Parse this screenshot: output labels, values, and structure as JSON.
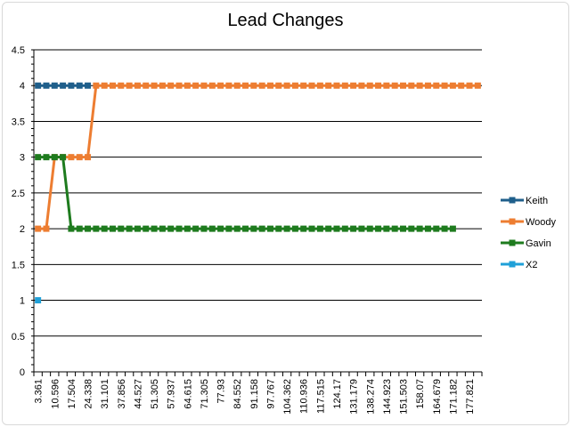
{
  "chart_data": {
    "type": "line",
    "title": "Lead Changes",
    "xlabel": "",
    "ylabel": "",
    "ylim": [
      0,
      4.5
    ],
    "y_ticks": [
      "0",
      "0.5",
      "1",
      "1.5",
      "2",
      "2.5",
      "3",
      "3.5",
      "4",
      "4.5"
    ],
    "x_tick_labels": [
      "3.361",
      "10.596",
      "17.504",
      "24.338",
      "31.101",
      "37.856",
      "44.527",
      "51.305",
      "57.937",
      "64.615",
      "71.305",
      "77.93",
      "84.552",
      "91.158",
      "97.767",
      "104.362",
      "110.936",
      "117.515",
      "124.17",
      "131.179",
      "138.274",
      "144.923",
      "151.503",
      "158.07",
      "164.679",
      "171.182",
      "177.821"
    ],
    "grid": "horizontal",
    "legend_position": "right",
    "series": [
      {
        "name": "Keith",
        "color": "#1f5f8b",
        "points": [
          [
            1,
            4
          ],
          [
            2,
            4
          ],
          [
            3,
            4
          ],
          [
            4,
            4
          ],
          [
            5,
            4
          ],
          [
            6,
            4
          ],
          [
            7,
            4
          ]
        ]
      },
      {
        "name": "Woody",
        "color": "#ed7d31",
        "points": [
          [
            1,
            2
          ],
          [
            2,
            2
          ],
          [
            3,
            3
          ],
          [
            4,
            3
          ],
          [
            5,
            3
          ],
          [
            6,
            3
          ],
          [
            7,
            3
          ],
          [
            8,
            4
          ],
          [
            9,
            4
          ],
          [
            10,
            4
          ],
          [
            11,
            4
          ],
          [
            12,
            4
          ],
          [
            13,
            4
          ],
          [
            14,
            4
          ],
          [
            15,
            4
          ],
          [
            16,
            4
          ],
          [
            17,
            4
          ],
          [
            18,
            4
          ],
          [
            19,
            4
          ],
          [
            20,
            4
          ],
          [
            21,
            4
          ],
          [
            22,
            4
          ],
          [
            23,
            4
          ],
          [
            24,
            4
          ],
          [
            25,
            4
          ],
          [
            26,
            4
          ],
          [
            27,
            4
          ],
          [
            28,
            4
          ],
          [
            29,
            4
          ],
          [
            30,
            4
          ],
          [
            31,
            4
          ],
          [
            32,
            4
          ],
          [
            33,
            4
          ],
          [
            34,
            4
          ],
          [
            35,
            4
          ],
          [
            36,
            4
          ],
          [
            37,
            4
          ],
          [
            38,
            4
          ],
          [
            39,
            4
          ],
          [
            40,
            4
          ],
          [
            41,
            4
          ],
          [
            42,
            4
          ],
          [
            43,
            4
          ],
          [
            44,
            4
          ],
          [
            45,
            4
          ],
          [
            46,
            4
          ],
          [
            47,
            4
          ],
          [
            48,
            4
          ],
          [
            49,
            4
          ],
          [
            50,
            4
          ],
          [
            51,
            4
          ],
          [
            52,
            4
          ],
          [
            53,
            4
          ],
          [
            54,
            4
          ]
        ]
      },
      {
        "name": "Gavin",
        "color": "#1e7b1e",
        "points": [
          [
            1,
            3
          ],
          [
            2,
            3
          ],
          [
            3,
            3
          ],
          [
            4,
            3
          ],
          [
            5,
            2
          ],
          [
            6,
            2
          ],
          [
            7,
            2
          ],
          [
            8,
            2
          ],
          [
            9,
            2
          ],
          [
            10,
            2
          ],
          [
            11,
            2
          ],
          [
            12,
            2
          ],
          [
            13,
            2
          ],
          [
            14,
            2
          ],
          [
            15,
            2
          ],
          [
            16,
            2
          ],
          [
            17,
            2
          ],
          [
            18,
            2
          ],
          [
            19,
            2
          ],
          [
            20,
            2
          ],
          [
            21,
            2
          ],
          [
            22,
            2
          ],
          [
            23,
            2
          ],
          [
            24,
            2
          ],
          [
            25,
            2
          ],
          [
            26,
            2
          ],
          [
            27,
            2
          ],
          [
            28,
            2
          ],
          [
            29,
            2
          ],
          [
            30,
            2
          ],
          [
            31,
            2
          ],
          [
            32,
            2
          ],
          [
            33,
            2
          ],
          [
            34,
            2
          ],
          [
            35,
            2
          ],
          [
            36,
            2
          ],
          [
            37,
            2
          ],
          [
            38,
            2
          ],
          [
            39,
            2
          ],
          [
            40,
            2
          ],
          [
            41,
            2
          ],
          [
            42,
            2
          ],
          [
            43,
            2
          ],
          [
            44,
            2
          ],
          [
            45,
            2
          ],
          [
            46,
            2
          ],
          [
            47,
            2
          ],
          [
            48,
            2
          ],
          [
            49,
            2
          ],
          [
            50,
            2
          ],
          [
            51,
            2
          ]
        ]
      },
      {
        "name": "X2",
        "color": "#1fa0d8",
        "points": [
          [
            1,
            1
          ]
        ]
      }
    ]
  }
}
